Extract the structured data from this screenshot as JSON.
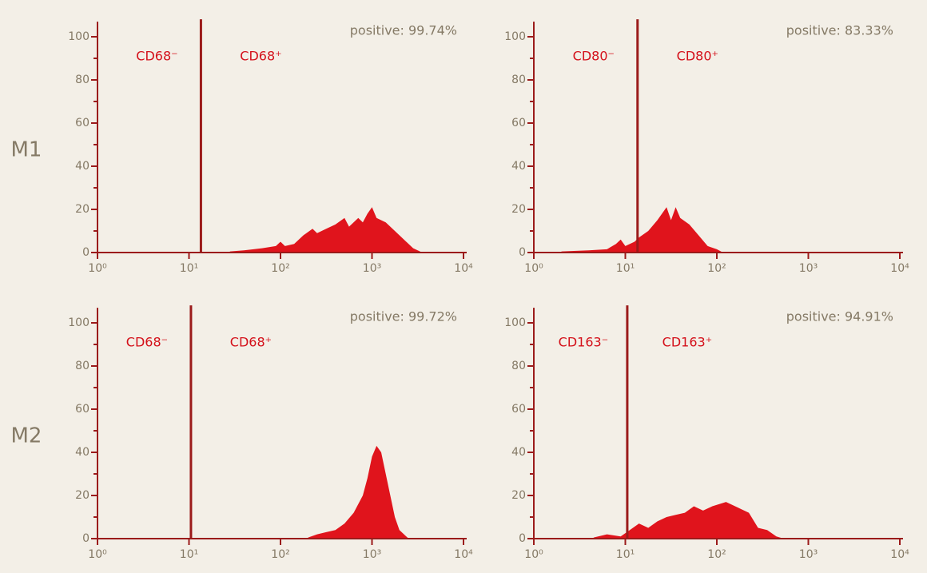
{
  "row_labels": [
    "M1",
    "M2"
  ],
  "chart_data": [
    {
      "type": "area",
      "xlog": true,
      "color": "#e0141c",
      "axis_color": "#9b1b1b",
      "annotation": "positive: 99.74%",
      "gate": 13.5,
      "gate_labels": [
        "CD68⁻",
        "CD68⁺"
      ],
      "x": [
        28,
        40,
        63,
        89,
        100,
        112,
        141,
        178,
        224,
        251,
        316,
        398,
        501,
        562,
        708,
        794,
        891,
        1000,
        1122,
        1413,
        1995,
        2818,
        3548
      ],
      "values": [
        0.5,
        1,
        2,
        3,
        5,
        3,
        4,
        8,
        11,
        9,
        11,
        13,
        16,
        12,
        16,
        14,
        18,
        21,
        16,
        14,
        8,
        2,
        0
      ],
      "xlim": [
        1,
        10000
      ],
      "xticks": [
        {
          "value": 1,
          "label": "10⁰"
        },
        {
          "value": 10,
          "label": "10¹"
        },
        {
          "value": 100,
          "label": "10²"
        },
        {
          "value": 1000,
          "label": "10³"
        },
        {
          "value": 10000,
          "label": "10⁴"
        }
      ],
      "ylim": [
        0,
        107
      ],
      "yticks": [
        0,
        20,
        40,
        60,
        80,
        100
      ],
      "yminor_ticks": [
        10,
        30,
        50,
        70,
        90
      ]
    },
    {
      "type": "area",
      "xlog": true,
      "color": "#e0141c",
      "axis_color": "#9b1b1b",
      "annotation": "positive: 83.33%",
      "gate": 13.6,
      "gate_labels": [
        "CD80⁻",
        "CD80⁺"
      ],
      "x": [
        2,
        4,
        6.3,
        7.9,
        8.9,
        10,
        12.6,
        14.1,
        17.8,
        22.4,
        28.2,
        31.6,
        35.5,
        39.8,
        50.1,
        63.1,
        79.4,
        100,
        117
      ],
      "values": [
        0.5,
        1,
        1.5,
        4,
        6,
        3,
        5,
        7,
        10,
        15,
        21,
        15,
        21,
        16,
        13,
        8,
        3,
        1.5,
        0
      ],
      "xlim": [
        1,
        10000
      ],
      "xticks": [
        {
          "value": 1,
          "label": "10⁰"
        },
        {
          "value": 10,
          "label": "10¹"
        },
        {
          "value": 100,
          "label": "10²"
        },
        {
          "value": 1000,
          "label": "10³"
        },
        {
          "value": 10000,
          "label": "10⁴"
        }
      ],
      "ylim": [
        0,
        107
      ],
      "yticks": [
        0,
        20,
        40,
        60,
        80,
        100
      ],
      "yminor_ticks": [
        10,
        30,
        50,
        70,
        90
      ]
    },
    {
      "type": "area",
      "xlog": true,
      "color": "#e0141c",
      "axis_color": "#9b1b1b",
      "annotation": "positive: 99.72%",
      "gate": 10.5,
      "gate_labels": [
        "CD68⁻",
        "CD68⁺"
      ],
      "x": [
        200,
        251,
        316,
        398,
        501,
        631,
        794,
        891,
        1000,
        1122,
        1259,
        1413,
        1585,
        1778,
        1995,
        2512
      ],
      "values": [
        0.5,
        2,
        3,
        4,
        7,
        12,
        20,
        28,
        38,
        43,
        40,
        30,
        20,
        10,
        4,
        0
      ],
      "xlim": [
        1,
        10000
      ],
      "xticks": [
        {
          "value": 1,
          "label": "10⁰"
        },
        {
          "value": 10,
          "label": "10¹"
        },
        {
          "value": 100,
          "label": "10²"
        },
        {
          "value": 1000,
          "label": "10³"
        },
        {
          "value": 10000,
          "label": "10⁴"
        }
      ],
      "ylim": [
        0,
        107
      ],
      "yticks": [
        0,
        20,
        40,
        60,
        80,
        100
      ],
      "yminor_ticks": [
        10,
        30,
        50,
        70,
        90
      ]
    },
    {
      "type": "area",
      "xlog": true,
      "color": "#e0141c",
      "axis_color": "#9b1b1b",
      "annotation": "positive: 94.91%",
      "gate": 10.5,
      "gate_labels": [
        "CD163⁻",
        "CD163⁺"
      ],
      "x": [
        4.5,
        6.3,
        8.9,
        11.2,
        14.1,
        17.8,
        22.4,
        28.2,
        35.5,
        44.7,
        56.2,
        70.8,
        89.1,
        126,
        178,
        224,
        282,
        355,
        447,
        537
      ],
      "values": [
        0.5,
        2,
        1,
        4,
        7,
        5,
        8,
        10,
        11,
        12,
        15,
        13,
        15,
        17,
        14,
        12,
        5,
        4,
        1,
        0
      ],
      "xlim": [
        1,
        10000
      ],
      "xticks": [
        {
          "value": 1,
          "label": "10⁰"
        },
        {
          "value": 10,
          "label": "10¹"
        },
        {
          "value": 100,
          "label": "10²"
        },
        {
          "value": 1000,
          "label": "10³"
        },
        {
          "value": 10000,
          "label": "10⁴"
        }
      ],
      "ylim": [
        0,
        107
      ],
      "yticks": [
        0,
        20,
        40,
        60,
        80,
        100
      ],
      "yminor_ticks": [
        10,
        30,
        50,
        70,
        90
      ]
    }
  ]
}
